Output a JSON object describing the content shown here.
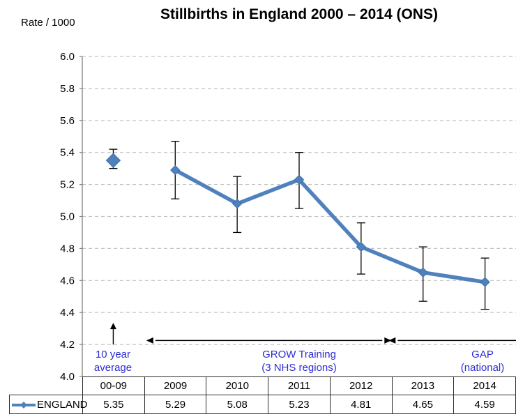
{
  "title": "Stillbirths in England 2000 – 2014 (ONS)",
  "y_axis_label": "Rate / 1000",
  "colors": {
    "series": "#4F81BD",
    "series_edge": "#3C6EA5",
    "annotation_text": "#2D2DD2",
    "gridline": "#C3C3C3",
    "axis": "#808080",
    "error_bar": "#000000",
    "arrow": "#000000"
  },
  "chart_data": {
    "type": "line",
    "categories": [
      "00-09",
      "2009",
      "2010",
      "2011",
      "2012",
      "2013",
      "2014"
    ],
    "series": [
      {
        "name": "ENGLAND",
        "values": [
          5.35,
          5.29,
          5.08,
          5.23,
          4.81,
          4.65,
          4.59
        ]
      }
    ],
    "error_bars": [
      {
        "low": 5.3,
        "high": 5.42
      },
      {
        "low": 5.11,
        "high": 5.47
      },
      {
        "low": 4.9,
        "high": 5.25
      },
      {
        "low": 5.05,
        "high": 5.4
      },
      {
        "low": 4.64,
        "high": 4.96
      },
      {
        "low": 4.47,
        "high": 4.81
      },
      {
        "low": 4.42,
        "high": 4.74
      }
    ],
    "standalone_first_point": true,
    "title": "Stillbirths in England 2000 – 2014 (ONS)",
    "xlabel": "",
    "ylabel": "Rate / 1000",
    "ylim": [
      4.0,
      6.0
    ],
    "y_tick_step": 0.2,
    "grid": "horizontal-dashed",
    "legend_position": "data-table-left"
  },
  "annotations": [
    {
      "lines": [
        "10 year",
        "average"
      ],
      "arrow": "up",
      "at_category": "00-09"
    },
    {
      "lines": [
        "GROW Training",
        "(3 NHS regions)"
      ],
      "arrow": "double",
      "span_categories": [
        "2009",
        "2012"
      ]
    },
    {
      "lines": [
        "GAP",
        "(national)"
      ],
      "arrow": "left",
      "span_categories": [
        "2013",
        "2014"
      ]
    }
  ]
}
